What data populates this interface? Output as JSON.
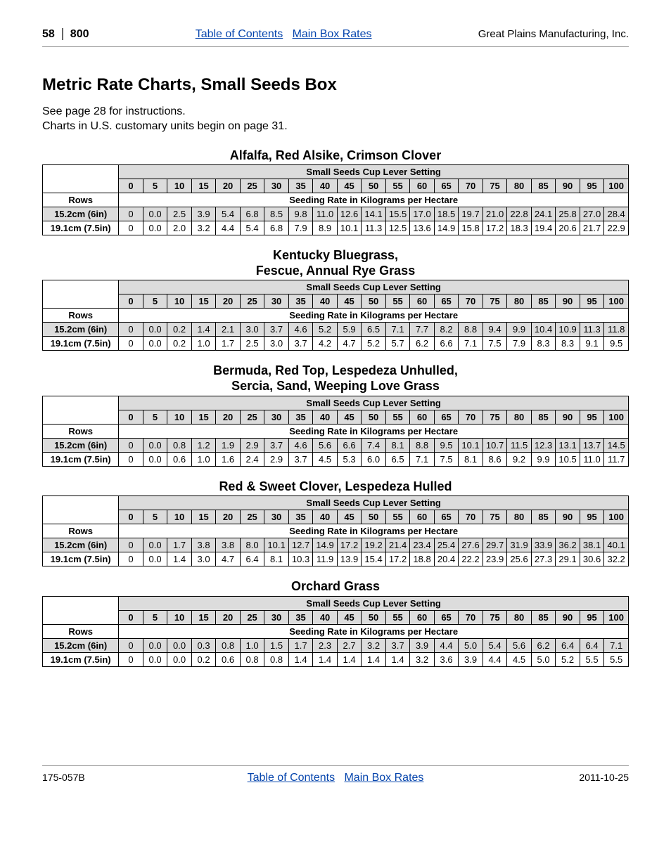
{
  "header": {
    "page_no": "58",
    "model": "800",
    "link_toc": "Table of Contents",
    "link_main": "Main Box Rates",
    "company": "Great Plains Manufacturing, Inc."
  },
  "title": "Metric Rate Charts, Small Seeds Box",
  "intro_line1": "See page 28 for instructions.",
  "intro_line2": "Charts in U.S. customary units begin on page 31.",
  "lever_settings": [
    "0",
    "5",
    "10",
    "15",
    "20",
    "25",
    "30",
    "35",
    "40",
    "45",
    "50",
    "55",
    "60",
    "65",
    "70",
    "75",
    "80",
    "85",
    "90",
    "95",
    "100"
  ],
  "sub1": "Small Seeds Cup Lever Setting",
  "sub2_rows": "Rows",
  "sub2_rate": "Seeding Rate in Kilograms per Hectare",
  "row_labels": [
    "15.2cm (6in)",
    "19.1cm (7.5in)"
  ],
  "column_widths": {
    "rowhdr_pct": 13.0,
    "data_pct": 4.142
  },
  "charts": [
    {
      "title": "Alfalfa, Red Alsike, Crimson Clover",
      "rows": [
        [
          "0",
          "0.0",
          "2.5",
          "3.9",
          "5.4",
          "6.8",
          "8.5",
          "9.8",
          "11.0",
          "12.6",
          "14.1",
          "15.5",
          "17.0",
          "18.5",
          "19.7",
          "21.0",
          "22.8",
          "24.1",
          "25.8",
          "27.0",
          "28.4"
        ],
        [
          "0",
          "0.0",
          "2.0",
          "3.2",
          "4.4",
          "5.4",
          "6.8",
          "7.9",
          "8.9",
          "10.1",
          "11.3",
          "12.5",
          "13.6",
          "14.9",
          "15.8",
          "17.2",
          "18.3",
          "19.4",
          "20.6",
          "21.7",
          "22.9"
        ]
      ]
    },
    {
      "title": "Kentucky Bluegrass,\nFescue, Annual Rye Grass",
      "rows": [
        [
          "0",
          "0.0",
          "0.2",
          "1.4",
          "2.1",
          "3.0",
          "3.7",
          "4.6",
          "5.2",
          "5.9",
          "6.5",
          "7.1",
          "7.7",
          "8.2",
          "8.8",
          "9.4",
          "9.9",
          "10.4",
          "10.9",
          "11.3",
          "11.8"
        ],
        [
          "0",
          "0.0",
          "0.2",
          "1.0",
          "1.7",
          "2.5",
          "3.0",
          "3.7",
          "4.2",
          "4.7",
          "5.2",
          "5.7",
          "6.2",
          "6.6",
          "7.1",
          "7.5",
          "7.9",
          "8.3",
          "8.3",
          "9.1",
          "9.5"
        ]
      ]
    },
    {
      "title": "Bermuda, Red Top, Lespedeza Unhulled,\nSercia, Sand, Weeping Love Grass",
      "rows": [
        [
          "0",
          "0.0",
          "0.8",
          "1.2",
          "1.9",
          "2.9",
          "3.7",
          "4.6",
          "5.6",
          "6.6",
          "7.4",
          "8.1",
          "8.8",
          "9.5",
          "10.1",
          "10.7",
          "11.5",
          "12.3",
          "13.1",
          "13.7",
          "14.5"
        ],
        [
          "0",
          "0.0",
          "0.6",
          "1.0",
          "1.6",
          "2.4",
          "2.9",
          "3.7",
          "4.5",
          "5.3",
          "6.0",
          "6.5",
          "7.1",
          "7.5",
          "8.1",
          "8.6",
          "9.2",
          "9.9",
          "10.5",
          "11.0",
          "11.7"
        ]
      ]
    },
    {
      "title": "Red & Sweet Clover, Lespedeza Hulled",
      "rows": [
        [
          "0",
          "0.0",
          "1.7",
          "3.8",
          "3.8",
          "8.0",
          "10.1",
          "12.7",
          "14.9",
          "17.2",
          "19.2",
          "21.4",
          "23.4",
          "25.4",
          "27.6",
          "29.7",
          "31.9",
          "33.9",
          "36.2",
          "38.1",
          "40.1"
        ],
        [
          "0",
          "0.0",
          "1.4",
          "3.0",
          "4.7",
          "6.4",
          "8.1",
          "10.3",
          "11.9",
          "13.9",
          "15.4",
          "17.2",
          "18.8",
          "20.4",
          "22.2",
          "23.9",
          "25.6",
          "27.3",
          "29.1",
          "30.6",
          "32.2"
        ]
      ]
    },
    {
      "title": "Orchard Grass",
      "rows": [
        [
          "0",
          "0.0",
          "0.0",
          "0.3",
          "0.8",
          "1.0",
          "1.5",
          "1.7",
          "2.3",
          "2.7",
          "3.2",
          "3.7",
          "3.9",
          "4.4",
          "5.0",
          "5.4",
          "5.6",
          "6.2",
          "6.4",
          "6.4",
          "7.1"
        ],
        [
          "0",
          "0.0",
          "0.0",
          "0.2",
          "0.6",
          "0.8",
          "0.8",
          "1.4",
          "1.4",
          "1.4",
          "1.4",
          "1.4",
          "3.2",
          "3.6",
          "3.9",
          "4.4",
          "4.5",
          "5.0",
          "5.2",
          "5.5",
          "5.5"
        ]
      ]
    }
  ],
  "footer": {
    "doc": "175-057B",
    "link_toc": "Table of Contents",
    "link_main": "Main Box Rates",
    "date": "2011-10-25"
  }
}
